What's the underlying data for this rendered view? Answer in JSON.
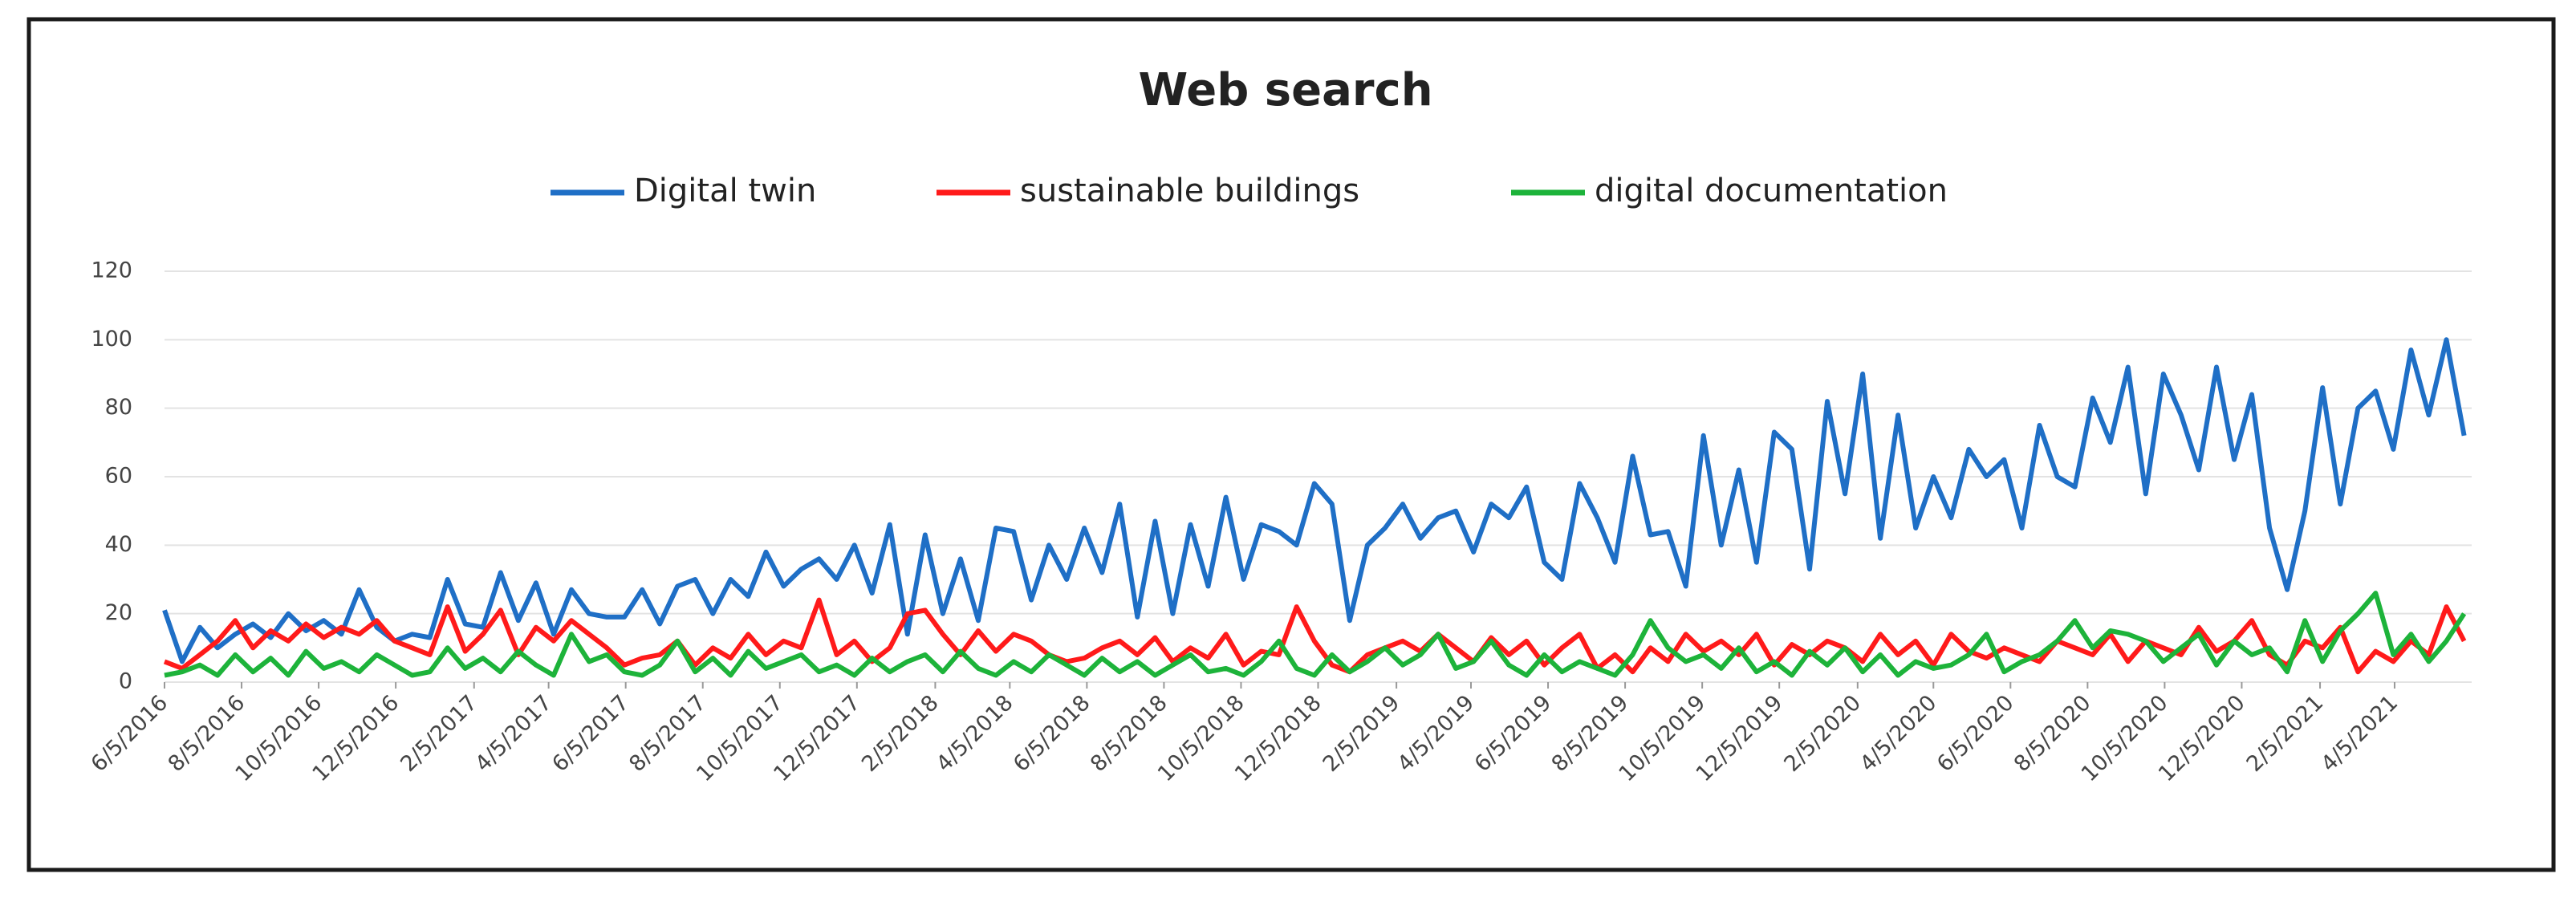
{
  "chart_data": {
    "type": "line",
    "title": "Web search",
    "x": [
      "6/5/2016",
      "6/19/2016",
      "7/3/2016",
      "7/17/2016",
      "7/31/2016",
      "8/14/2016",
      "8/28/2016",
      "9/11/2016",
      "9/25/2016",
      "10/9/2016",
      "10/23/2016",
      "11/6/2016",
      "11/20/2016",
      "12/4/2016",
      "12/18/2016",
      "1/1/2017",
      "1/15/2017",
      "1/29/2017",
      "2/12/2017",
      "2/26/2017",
      "3/12/2017",
      "3/26/2017",
      "4/9/2017",
      "4/23/2017",
      "5/7/2017",
      "5/21/2017",
      "6/4/2017",
      "6/18/2017",
      "7/2/2017",
      "7/16/2017",
      "7/30/2017",
      "8/13/2017",
      "8/27/2017",
      "9/10/2017",
      "9/24/2017",
      "10/8/2017",
      "10/22/2017",
      "11/5/2017",
      "11/19/2017",
      "12/3/2017",
      "12/17/2017",
      "12/31/2017",
      "1/14/2018",
      "1/28/2018",
      "2/11/2018",
      "2/25/2018",
      "3/11/2018",
      "3/25/2018",
      "4/8/2018",
      "4/22/2018",
      "5/6/2018",
      "5/20/2018",
      "6/3/2018",
      "6/17/2018",
      "7/1/2018",
      "7/15/2018",
      "7/29/2018",
      "8/12/2018",
      "8/26/2018",
      "9/9/2018",
      "9/23/2018",
      "10/7/2018",
      "10/21/2018",
      "11/4/2018",
      "11/18/2018",
      "12/2/2018",
      "12/16/2018",
      "12/30/2018",
      "1/13/2019",
      "1/27/2019",
      "2/10/2019",
      "2/24/2019",
      "3/10/2019",
      "3/24/2019",
      "4/7/2019",
      "4/21/2019",
      "5/5/2019",
      "5/19/2019",
      "6/2/2019",
      "6/16/2019",
      "6/30/2019",
      "7/14/2019",
      "7/28/2019",
      "8/11/2019",
      "8/25/2019",
      "9/8/2019",
      "9/22/2019",
      "10/6/2019",
      "10/20/2019",
      "11/3/2019",
      "11/17/2019",
      "12/1/2019",
      "12/15/2019",
      "12/29/2019",
      "1/12/2020",
      "1/26/2020",
      "2/9/2020",
      "2/23/2020",
      "3/8/2020",
      "3/22/2020",
      "4/5/2020",
      "4/19/2020",
      "5/3/2020",
      "5/17/2020",
      "5/31/2020",
      "6/14/2020",
      "6/28/2020",
      "7/12/2020",
      "7/26/2020",
      "8/9/2020",
      "8/23/2020",
      "9/6/2020",
      "9/20/2020",
      "10/4/2020",
      "10/18/2020",
      "11/1/2020",
      "11/15/2020",
      "11/29/2020",
      "12/13/2020",
      "12/27/2020",
      "1/10/2021",
      "1/24/2021",
      "2/7/2021",
      "2/21/2021",
      "3/7/2021",
      "3/21/2021",
      "4/4/2021",
      "4/18/2021",
      "5/2/2021",
      "5/16/2021",
      "5/30/2021"
    ],
    "series": [
      {
        "name": "Digital twin",
        "color": "#1f6fc6",
        "values": [
          21,
          6,
          16,
          10,
          14,
          17,
          13,
          20,
          15,
          18,
          14,
          27,
          16,
          12,
          14,
          13,
          30,
          17,
          16,
          32,
          18,
          29,
          14,
          27,
          20,
          19,
          19,
          27,
          17,
          28,
          30,
          20,
          30,
          25,
          38,
          28,
          33,
          36,
          30,
          40,
          26,
          46,
          14,
          43,
          20,
          36,
          18,
          45,
          44,
          24,
          40,
          30,
          45,
          32,
          52,
          19,
          47,
          20,
          46,
          28,
          54,
          30,
          46,
          44,
          40,
          58,
          52,
          18,
          40,
          45,
          52,
          42,
          48,
          50,
          38,
          52,
          48,
          57,
          35,
          30,
          58,
          48,
          35,
          66,
          43,
          44,
          28,
          72,
          40,
          62,
          35,
          73,
          68,
          33,
          82,
          55,
          90,
          42,
          78,
          45,
          60,
          48,
          68,
          60,
          65,
          45,
          75,
          60,
          57,
          83,
          70,
          92,
          55,
          90,
          78,
          62,
          92,
          65,
          84,
          45,
          27,
          50,
          86,
          52,
          80,
          85,
          68,
          97,
          78,
          100,
          72
        ]
      },
      {
        "name": "sustainable buildings",
        "color": "#ff1a1a",
        "values": [
          6,
          4,
          8,
          12,
          18,
          10,
          15,
          12,
          17,
          13,
          16,
          14,
          18,
          12,
          10,
          8,
          22,
          9,
          14,
          21,
          8,
          16,
          12,
          18,
          14,
          10,
          5,
          7,
          8,
          12,
          5,
          10,
          7,
          14,
          8,
          12,
          10,
          24,
          8,
          12,
          6,
          10,
          20,
          21,
          14,
          8,
          15,
          9,
          14,
          12,
          8,
          6,
          7,
          10,
          12,
          8,
          13,
          6,
          10,
          7,
          14,
          5,
          9,
          8,
          22,
          12,
          5,
          3,
          8,
          10,
          12,
          9,
          14,
          10,
          6,
          13,
          8,
          12,
          5,
          10,
          14,
          4,
          8,
          3,
          10,
          6,
          14,
          9,
          12,
          8,
          14,
          5,
          11,
          8,
          12,
          10,
          6,
          14,
          8,
          12,
          5,
          14,
          9,
          7,
          10,
          8,
          6,
          12,
          10,
          8,
          14,
          6,
          12,
          10,
          8,
          16,
          9,
          12,
          18,
          8,
          5,
          12,
          10,
          16,
          3,
          9,
          6,
          12,
          8,
          22,
          12
        ]
      },
      {
        "name": "digital documentation",
        "color": "#1db33a",
        "values": [
          2,
          3,
          5,
          2,
          8,
          3,
          7,
          2,
          9,
          4,
          6,
          3,
          8,
          5,
          2,
          3,
          10,
          4,
          7,
          3,
          9,
          5,
          2,
          14,
          6,
          8,
          3,
          2,
          5,
          12,
          3,
          7,
          2,
          9,
          4,
          6,
          8,
          3,
          5,
          2,
          7,
          3,
          6,
          8,
          3,
          9,
          4,
          2,
          6,
          3,
          8,
          5,
          2,
          7,
          3,
          6,
          2,
          5,
          8,
          3,
          4,
          2,
          6,
          12,
          4,
          2,
          8,
          3,
          6,
          10,
          5,
          8,
          14,
          4,
          6,
          12,
          5,
          2,
          8,
          3,
          6,
          4,
          2,
          8,
          18,
          10,
          6,
          8,
          4,
          10,
          3,
          6,
          2,
          9,
          5,
          10,
          3,
          8,
          2,
          6,
          4,
          5,
          8,
          14,
          3,
          6,
          8,
          12,
          18,
          10,
          15,
          14,
          12,
          6,
          10,
          14,
          5,
          12,
          8,
          10,
          3,
          18,
          6,
          15,
          20,
          26,
          8,
          14,
          6,
          12,
          20
        ]
      }
    ],
    "xlim": [
      "6/5/2016",
      "6/5/2021"
    ],
    "xticks": [
      "6/5/2016",
      "8/5/2016",
      "10/5/2016",
      "12/5/2016",
      "2/5/2017",
      "4/5/2017",
      "6/5/2017",
      "8/5/2017",
      "10/5/2017",
      "12/5/2017",
      "2/5/2018",
      "4/5/2018",
      "6/5/2018",
      "8/5/2018",
      "10/5/2018",
      "12/5/2018",
      "2/5/2019",
      "4/5/2019",
      "6/5/2019",
      "8/5/2019",
      "10/5/2019",
      "12/5/2019",
      "2/5/2020",
      "4/5/2020",
      "6/5/2020",
      "8/5/2020",
      "10/5/2020",
      "12/5/2020",
      "2/5/2021",
      "4/5/2021"
    ],
    "ylim": [
      0,
      120
    ],
    "yticks": [
      0,
      20,
      40,
      60,
      80,
      100,
      120
    ],
    "grid": true,
    "legend": "top"
  }
}
